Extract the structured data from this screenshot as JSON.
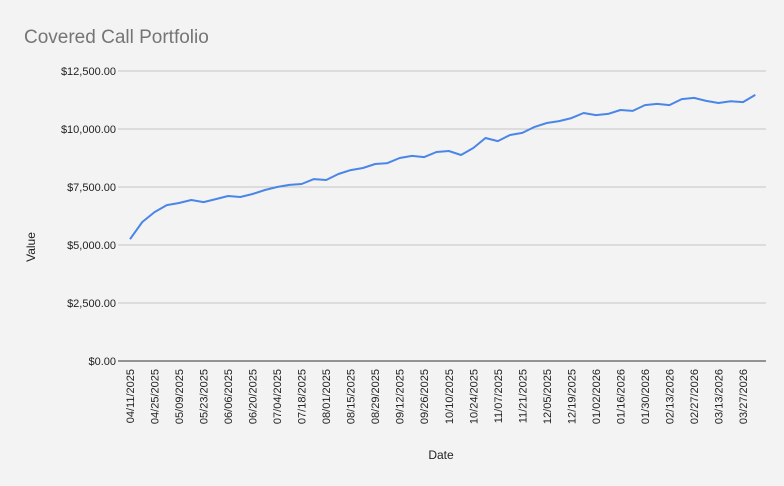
{
  "chart_data": {
    "type": "line",
    "title": "Covered Call Portfolio",
    "xlabel": "Date",
    "ylabel": "Value",
    "ylim": [
      0,
      12500
    ],
    "yticks": [
      "$0.00",
      "$2,500.00",
      "$5,000.00",
      "$7,500.00",
      "$10,000.00",
      "$12,500.00"
    ],
    "ytick_values": [
      0,
      2500,
      5000,
      7500,
      10000,
      12500
    ],
    "grid": true,
    "line_color": "#4a86e8",
    "x": [
      "04/11/2025",
      "04/18/2025",
      "04/25/2025",
      "05/02/2025",
      "05/09/2025",
      "05/16/2025",
      "05/23/2025",
      "05/30/2025",
      "06/06/2025",
      "06/13/2025",
      "06/20/2025",
      "06/27/2025",
      "07/04/2025",
      "07/11/2025",
      "07/18/2025",
      "07/25/2025",
      "08/01/2025",
      "08/08/2025",
      "08/15/2025",
      "08/22/2025",
      "08/29/2025",
      "09/05/2025",
      "09/12/2025",
      "09/19/2025",
      "09/26/2025",
      "10/03/2025",
      "10/10/2025",
      "10/17/2025",
      "10/24/2025",
      "10/31/2025",
      "11/07/2025",
      "11/14/2025",
      "11/21/2025",
      "11/28/2025",
      "12/05/2025",
      "12/12/2025",
      "12/19/2025",
      "12/26/2025",
      "01/02/2026",
      "01/09/2026",
      "01/16/2026",
      "01/23/2026",
      "01/30/2026",
      "02/06/2026",
      "02/13/2026",
      "02/20/2026",
      "02/27/2026",
      "03/06/2026",
      "03/13/2026",
      "03/20/2026",
      "03/27/2026",
      "04/03/2026"
    ],
    "xtick_labels": [
      "04/11/2025",
      "04/25/2025",
      "05/09/2025",
      "05/23/2025",
      "06/06/2025",
      "06/20/2025",
      "07/04/2025",
      "07/18/2025",
      "08/01/2025",
      "08/15/2025",
      "08/29/2025",
      "09/12/2025",
      "09/26/2025",
      "10/10/2025",
      "10/24/2025",
      "11/07/2025",
      "11/21/2025",
      "12/05/2025",
      "12/19/2025",
      "01/02/2026",
      "01/16/2026",
      "01/30/2026",
      "02/13/2026",
      "02/27/2026",
      "03/13/2026",
      "03/27/2026"
    ],
    "values": [
      5250,
      5990,
      6420,
      6720,
      6810,
      6940,
      6850,
      6980,
      7110,
      7070,
      7200,
      7370,
      7500,
      7590,
      7630,
      7840,
      7800,
      8060,
      8230,
      8320,
      8490,
      8530,
      8750,
      8840,
      8790,
      9010,
      9050,
      8880,
      9180,
      9610,
      9480,
      9740,
      9830,
      10090,
      10260,
      10340,
      10470,
      10690,
      10600,
      10650,
      10820,
      10780,
      11030,
      11080,
      11030,
      11290,
      11340,
      11210,
      11120,
      11200,
      11160,
      11470
    ]
  }
}
